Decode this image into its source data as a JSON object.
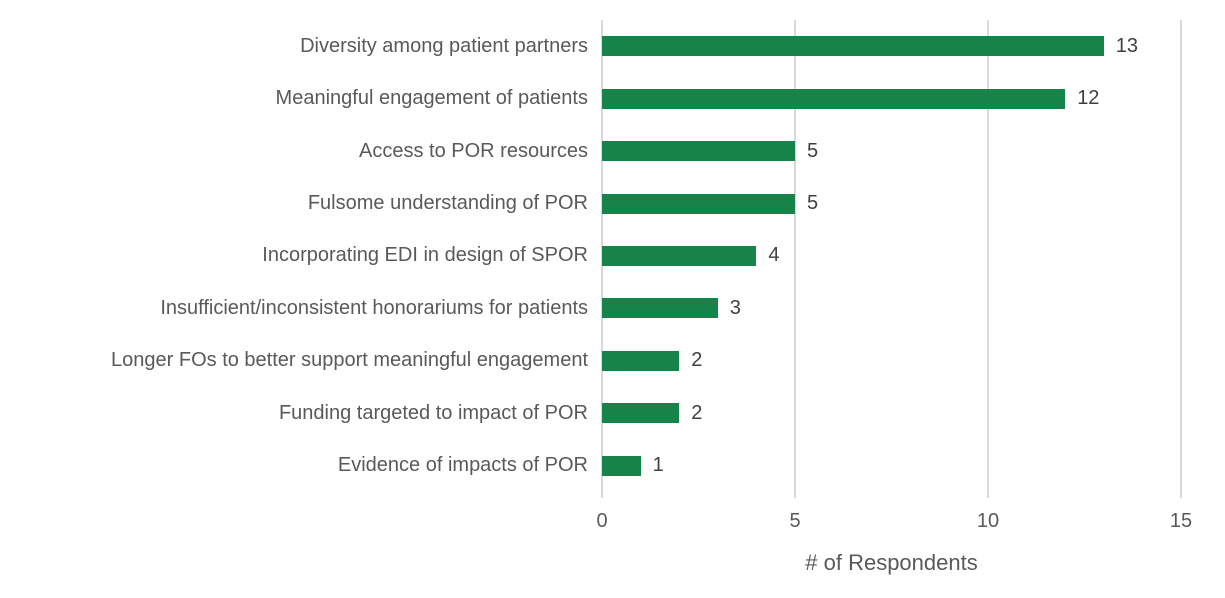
{
  "chart_data": {
    "type": "bar",
    "orientation": "horizontal",
    "xlabel": "# of Respondents",
    "xlim": [
      0,
      15
    ],
    "xticks": [
      0,
      5,
      10,
      15
    ],
    "grid": true,
    "legend": false,
    "categories": [
      "Diversity among patient partners",
      "Meaningful engagement of patients",
      "Access to POR resources",
      "Fulsome understanding of POR",
      "Incorporating EDI in design of SPOR",
      "Insufficient/inconsistent honorariums for patients",
      "Longer FOs to better support meaningful engagement",
      "Funding targeted to impact of POR",
      "Evidence of impacts of POR"
    ],
    "values": [
      13,
      12,
      5,
      5,
      4,
      3,
      2,
      2,
      1
    ],
    "colors": {
      "bar": "#168449",
      "gridline": "#D9D9D9",
      "axis_text": "#595959",
      "value_text": "#404040",
      "background": "#FFFFFF"
    }
  }
}
